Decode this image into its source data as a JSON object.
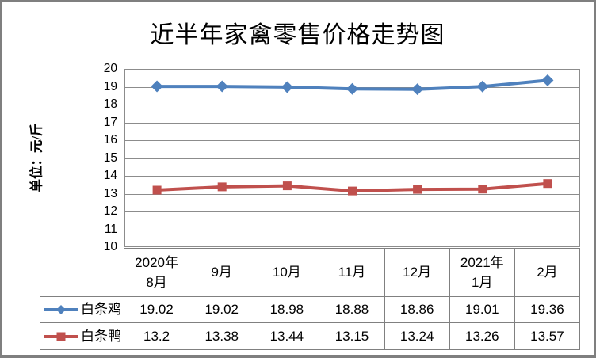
{
  "frame": {
    "border_color": "#7f7f7f",
    "background": "#ffffff"
  },
  "chart_data": {
    "type": "line",
    "title": "近半年家禽零售价格走势图",
    "ylabel": "单位：元/斤",
    "xlabel": "",
    "categories": [
      "2020年\n8月",
      "9月",
      "10月",
      "11月",
      "12月",
      "2021年\n1月",
      "2月"
    ],
    "series": [
      {
        "key": "chicken",
        "name": "白条鸡",
        "marker": "diamond",
        "color": "#4F81BD",
        "values": [
          19.02,
          19.02,
          18.98,
          18.88,
          18.86,
          19.01,
          19.36
        ]
      },
      {
        "key": "duck",
        "name": "白条鸭",
        "marker": "square",
        "color": "#C0504D",
        "values": [
          13.2,
          13.38,
          13.44,
          13.15,
          13.24,
          13.26,
          13.57
        ]
      }
    ],
    "ylim": [
      10,
      20
    ],
    "ytick_step": 1,
    "grid": true,
    "grid_color": "#8C8C8C",
    "table_border_color": "#808080",
    "legend_position": "table-left",
    "data_table_shown": true
  }
}
